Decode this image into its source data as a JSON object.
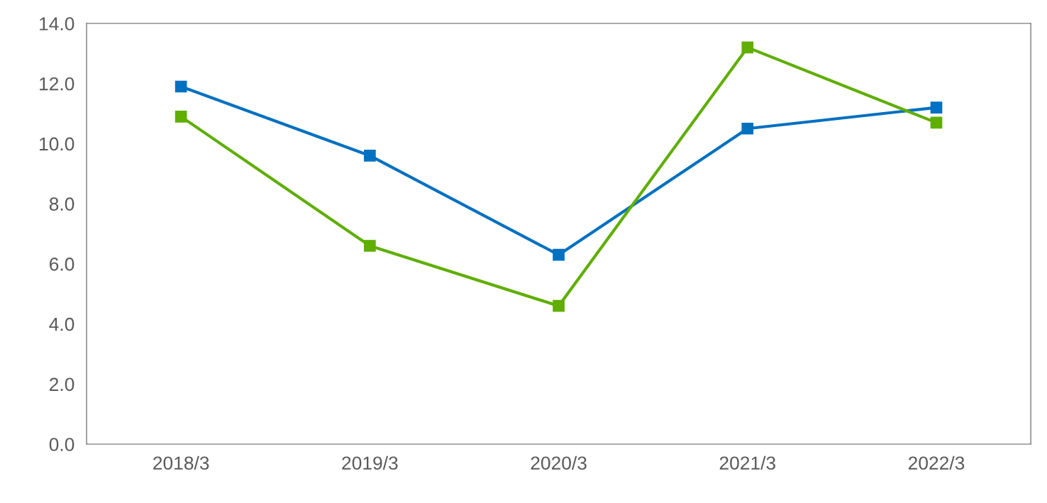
{
  "chart_data": {
    "type": "line",
    "categories": [
      "2018/3",
      "2019/3",
      "2020/3",
      "2021/3",
      "2022/3"
    ],
    "series": [
      {
        "color": "#0070c0",
        "values": [
          11.9,
          9.6,
          6.3,
          10.5,
          11.2
        ]
      },
      {
        "color": "#5fae00",
        "values": [
          10.9,
          6.6,
          4.6,
          13.2,
          10.7
        ]
      }
    ],
    "ylim": [
      0,
      14
    ],
    "yticks": [
      {
        "value": 0,
        "label": "0.0"
      },
      {
        "value": 2,
        "label": "2.0"
      },
      {
        "value": 4,
        "label": "4.0"
      },
      {
        "value": 6,
        "label": "6.0"
      },
      {
        "value": 8,
        "label": "8.0"
      },
      {
        "value": 10,
        "label": "10.0"
      },
      {
        "value": 12,
        "label": "12.0"
      },
      {
        "value": 14,
        "label": "14.0"
      }
    ],
    "grid": false,
    "legend": false,
    "marker": "square",
    "line_style": "solid"
  }
}
